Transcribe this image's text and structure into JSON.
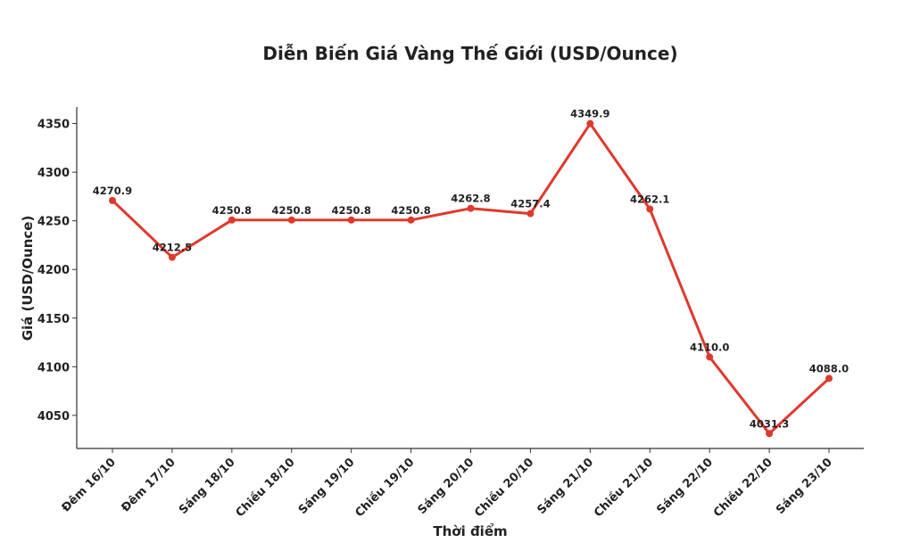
{
  "chart_data": {
    "type": "line",
    "title": "Diễn Biến Giá Vàng Thế Giới (USD/Ounce)",
    "xlabel": "Thời điểm",
    "ylabel": "Giá (USD/Ounce)",
    "categories": [
      "Đêm 16/10",
      "Đêm 17/10",
      "Sáng 18/10",
      "Chiều 18/10",
      "Sáng 19/10",
      "Chiều 19/10",
      "Sáng 20/10",
      "Chiều 20/10",
      "Sáng 21/10",
      "Chiều 21/10",
      "Sáng 22/10",
      "Chiều 22/10",
      "Sáng 23/10"
    ],
    "series": [
      {
        "values": [
          4270.9,
          4212.5,
          4250.8,
          4250.8,
          4250.8,
          4250.8,
          4262.8,
          4257.4,
          4349.9,
          4262.1,
          4110.0,
          4031.3,
          4088.0
        ],
        "color": "#e0392b"
      }
    ],
    "data_labels": [
      "4270.9",
      "4212.5",
      "4250.8",
      "4250.8",
      "4250.8",
      "4250.8",
      "4262.8",
      "4257.4",
      "4349.9",
      "4262.1",
      "4110.0",
      "4031.3",
      "4088.0"
    ],
    "yticks": [
      4050,
      4100,
      4150,
      4200,
      4250,
      4300,
      4350
    ],
    "ylim": [
      4016,
      4367
    ],
    "grid": false,
    "legend": "none"
  }
}
